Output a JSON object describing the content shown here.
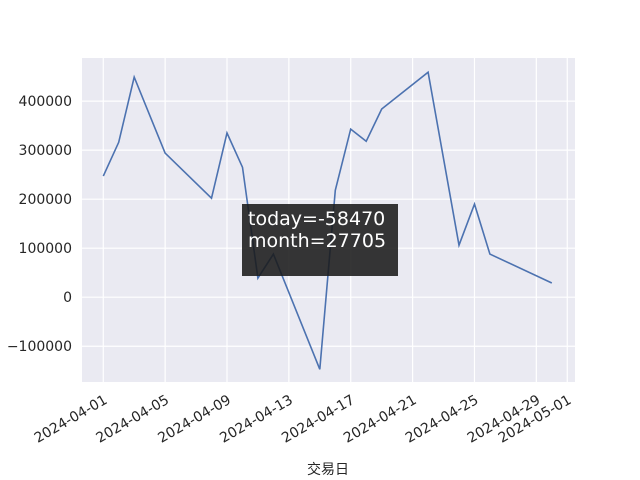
{
  "chart_data": {
    "type": "line",
    "xlabel": "交易日",
    "x": [
      "2024-04-01",
      "2024-04-02",
      "2024-04-03",
      "2024-04-05",
      "2024-04-08",
      "2024-04-09",
      "2024-04-10",
      "2024-04-11",
      "2024-04-12",
      "2024-04-15",
      "2024-04-16",
      "2024-04-17",
      "2024-04-18",
      "2024-04-19",
      "2024-04-22",
      "2024-04-24",
      "2024-04-25",
      "2024-04-26",
      "2024-04-30"
    ],
    "series": [
      {
        "color": "#4c72b0",
        "values": [
          247000,
          316000,
          449000,
          294000,
          202000,
          335000,
          265000,
          39000,
          88000,
          -147000,
          218000,
          343000,
          318000,
          384000,
          459000,
          106000,
          190000,
          88000,
          29000
        ]
      }
    ],
    "xlim": [
      "2024-03-30T15:00",
      "2024-05-01T12:00"
    ],
    "xticks": [
      "2024-04-01",
      "2024-04-05",
      "2024-04-09",
      "2024-04-13",
      "2024-04-17",
      "2024-04-21",
      "2024-04-25",
      "2024-04-29",
      "2024-05-01"
    ],
    "ylim": [
      -173000,
      488000
    ],
    "yticks": [
      {
        "value": -100000,
        "label": "−100000"
      },
      0,
      100000,
      200000,
      300000,
      400000
    ],
    "grid": true,
    "tooltip": {
      "lines": [
        "today=-58470",
        "month=27705"
      ]
    }
  }
}
